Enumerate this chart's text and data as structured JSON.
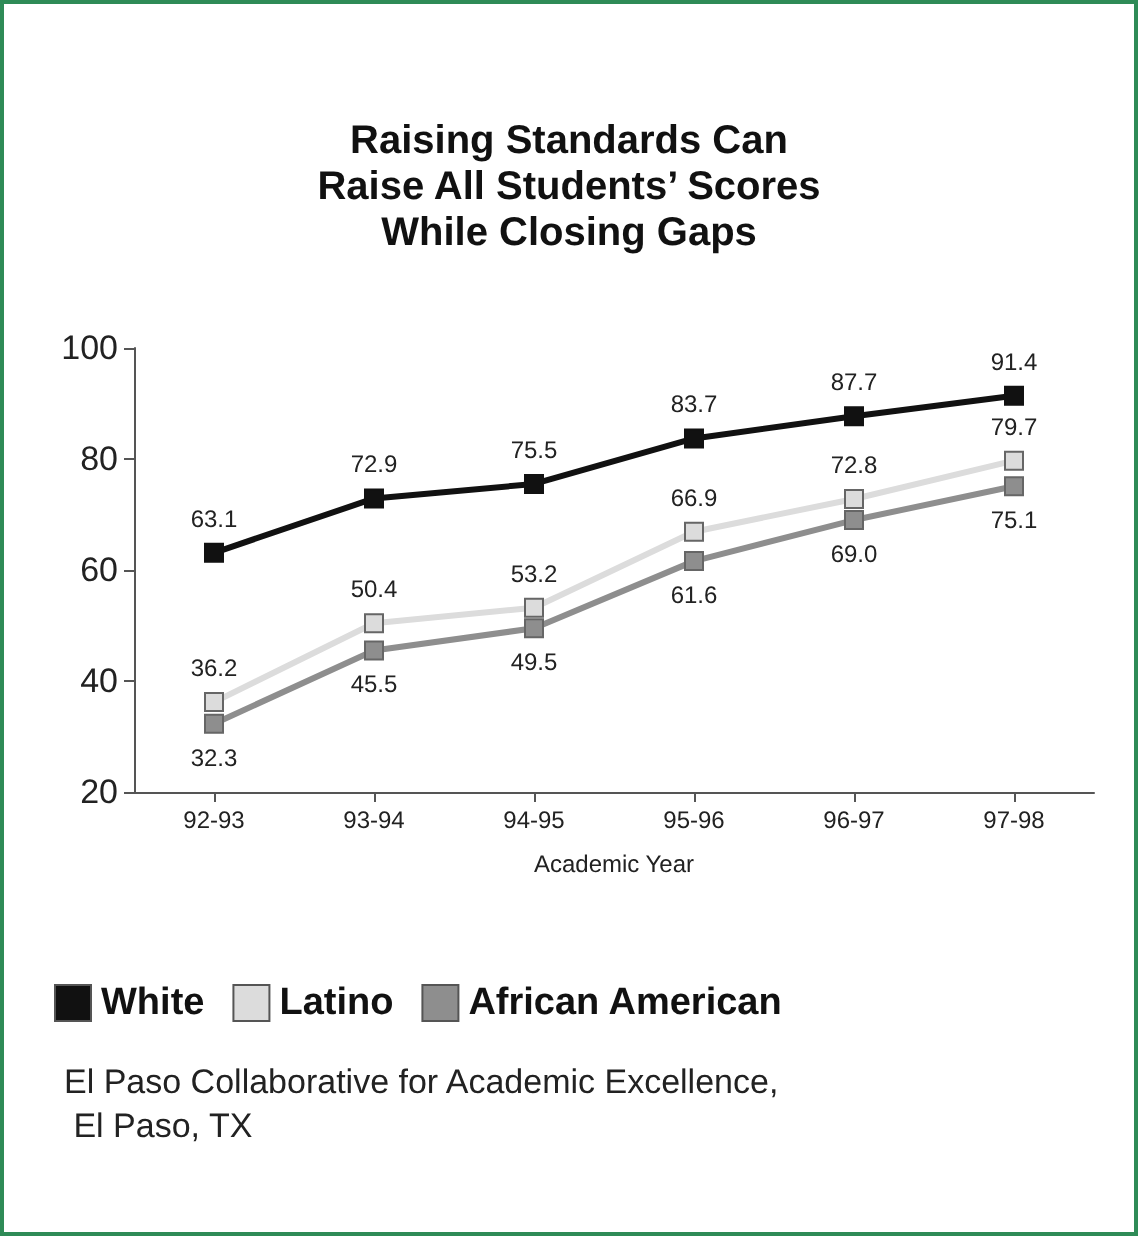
{
  "chart_data": {
    "type": "line",
    "title": "Raising Standards Can\nRaise All Students’ Scores\nWhile Closing Gaps",
    "xlabel": "Academic Year",
    "categories": [
      "92-93",
      "93-94",
      "94-95",
      "95-96",
      "96-97",
      "97-98"
    ],
    "series": [
      {
        "name": "White",
        "color": "#111111",
        "values": [
          63.1,
          72.9,
          75.5,
          83.7,
          87.7,
          91.4
        ],
        "value_labels": [
          "63.1",
          "72.9",
          "75.5",
          "83.7",
          "87.7",
          "91.4"
        ]
      },
      {
        "name": "Latino",
        "color": "#dcdcdc",
        "values": [
          36.2,
          50.4,
          53.2,
          66.9,
          72.8,
          79.7
        ],
        "value_labels": [
          "36.2",
          "50.4",
          "53.2",
          "66.9",
          "72.8",
          "79.7"
        ]
      },
      {
        "name": "African American",
        "color": "#8e8e8e",
        "values": [
          32.3,
          45.5,
          49.5,
          61.6,
          69.0,
          75.1
        ],
        "value_labels": [
          "32.3",
          "45.5",
          "49.5",
          "61.6",
          "69.0",
          "75.1"
        ]
      }
    ],
    "ylim": [
      20,
      100
    ],
    "yticks": [
      20,
      40,
      60,
      80,
      100
    ],
    "grid": false,
    "legend": "bottom",
    "marker": "square",
    "line_style": "solid",
    "annotations": [
      "El Paso Collaborative for Academic Excellence, El Paso, TX"
    ]
  }
}
